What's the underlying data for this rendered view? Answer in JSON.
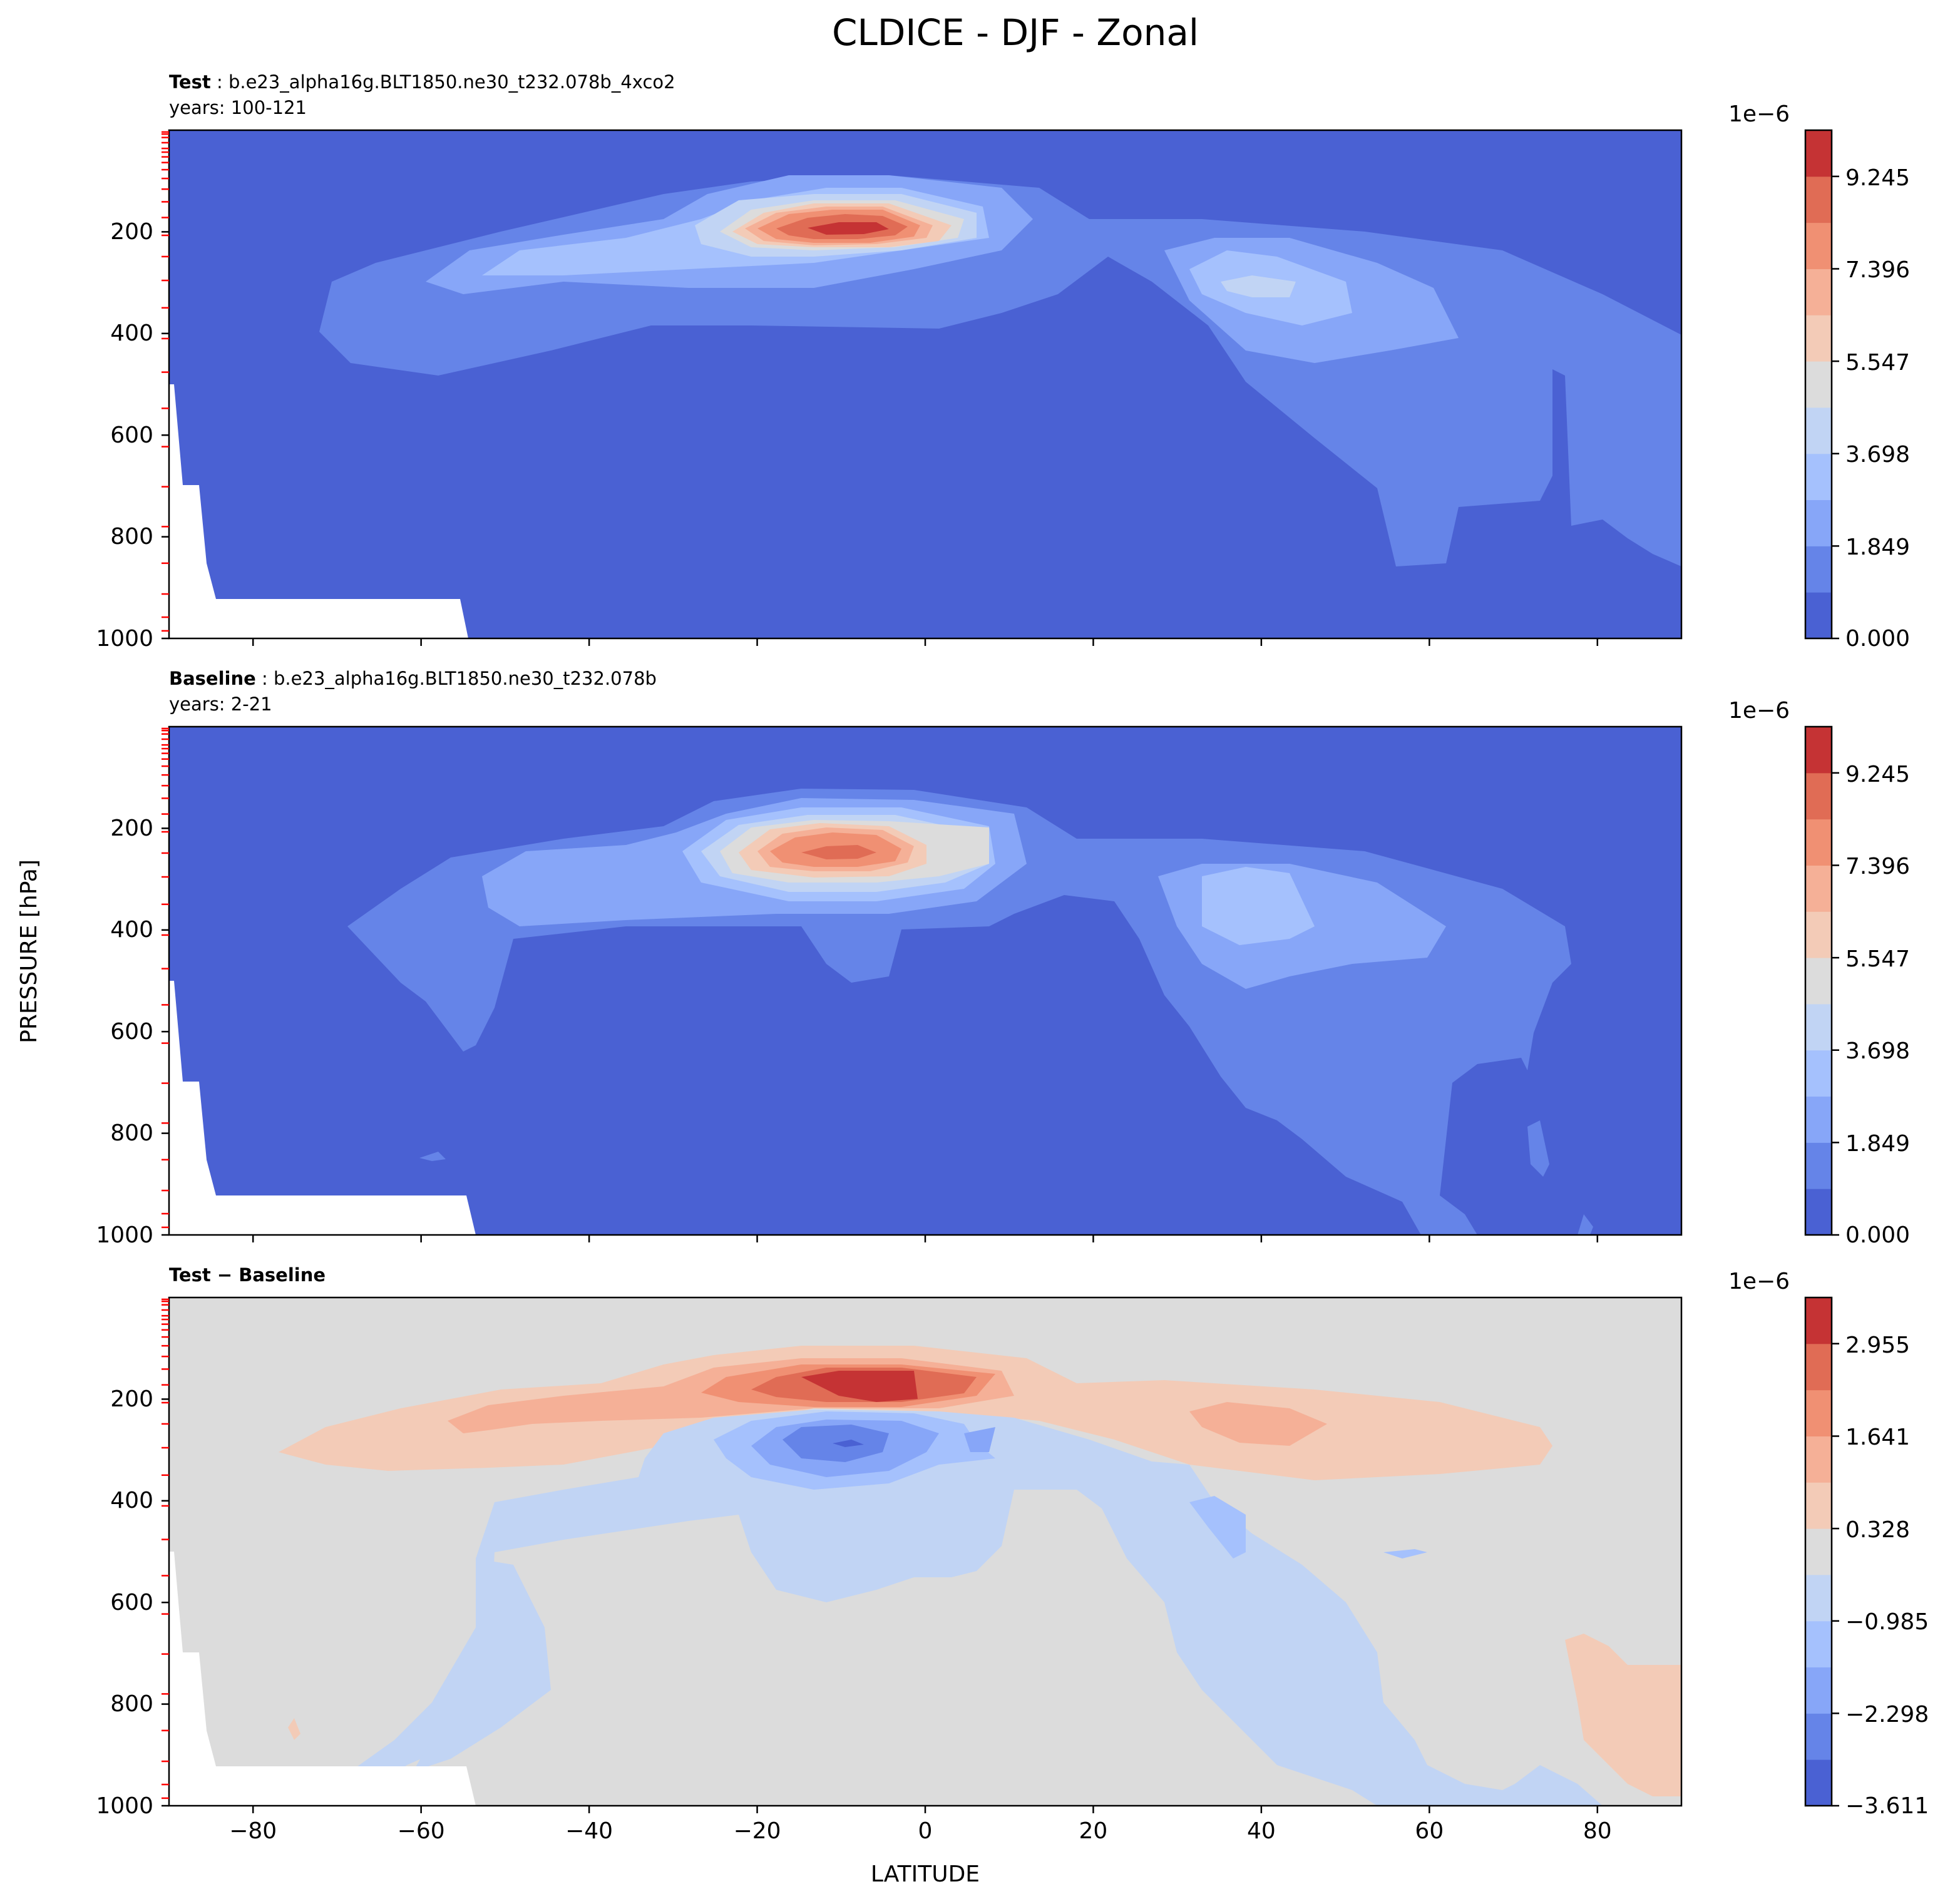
{
  "figure": {
    "title": "CLDICE - DJF - Zonal",
    "shared_ylabel": "PRESSURE [hPa]",
    "shared_xlabel": "LATITUDE"
  },
  "colors": {
    "neg_strong": "#4a61d3",
    "neg_4": "#6584e8",
    "neg_3": "#87a6f8",
    "neg_2": "#a5c1fd",
    "neg_1": "#c1d4f4",
    "neutral": "#dcdcdc",
    "pos_1": "#f3cbb7",
    "pos_2": "#f5b097",
    "pos_3": "#f09073",
    "pos_4": "#e06c55",
    "pos_strong": "#c53334",
    "tick_red": "#ff0000"
  },
  "chart_data": [
    {
      "type": "contourf",
      "panel_label_bold": "Test",
      "panel_label_rest": " : b.e23_alpha16g.BLT1850.ne30_t232.078b_4xco2",
      "years": "years: 100-121",
      "xlim": [
        -90,
        90
      ],
      "ylim": [
        1000,
        0
      ],
      "x_ticks": [
        -80,
        -60,
        -40,
        -20,
        0,
        20,
        40,
        60,
        80
      ],
      "y_ticks": [
        "200",
        "400",
        "600",
        "800",
        "1000"
      ],
      "colorbar": {
        "exponent": "1e−6",
        "tick_labels": [
          "9.245",
          "7.396",
          "5.547",
          "3.698",
          "1.849",
          "0.000"
        ],
        "levels": [
          0,
          0.925,
          1.849,
          2.774,
          3.698,
          4.623,
          5.547,
          6.472,
          7.396,
          8.321,
          9.245,
          10.17
        ]
      },
      "features": [
        {
          "name": "tropical upper maximum",
          "lat": -7,
          "pressure_hpa": 200,
          "max": 9.5
        },
        {
          "name": "northern mid-latitude maximum",
          "lat": 40,
          "pressure_hpa": 300,
          "max": 4.2
        }
      ]
    },
    {
      "type": "contourf",
      "panel_label_bold": "Baseline",
      "panel_label_rest": " : b.e23_alpha16g.BLT1850.ne30_t232.078b",
      "years": "years: 2-21",
      "xlim": [
        -90,
        90
      ],
      "ylim": [
        1000,
        0
      ],
      "x_ticks": [
        -80,
        -60,
        -40,
        -20,
        0,
        20,
        40,
        60,
        80
      ],
      "y_ticks": [
        "200",
        "400",
        "600",
        "800",
        "1000"
      ],
      "colorbar": {
        "exponent": "1e−6",
        "tick_labels": [
          "9.245",
          "7.396",
          "5.547",
          "3.698",
          "1.849",
          "0.000"
        ],
        "levels": [
          0,
          0.925,
          1.849,
          2.774,
          3.698,
          4.623,
          5.547,
          6.472,
          7.396,
          8.321,
          9.245,
          10.17
        ]
      },
      "features": [
        {
          "name": "tropical upper maximum",
          "lat": -8,
          "pressure_hpa": 240,
          "max": 8.5
        },
        {
          "name": "northern mid-latitude maximum",
          "lat": 38,
          "pressure_hpa": 380,
          "max": 3.5
        }
      ]
    },
    {
      "type": "contourf",
      "panel_label_bold": "Test − Baseline",
      "panel_label_rest": "",
      "years": "",
      "xlim": [
        -90,
        90
      ],
      "ylim": [
        1000,
        0
      ],
      "x_ticks": [
        -80,
        -60,
        -40,
        -20,
        0,
        20,
        40,
        60,
        80
      ],
      "y_ticks": [
        "200",
        "400",
        "600",
        "800",
        "1000"
      ],
      "colorbar": {
        "exponent": "1e−6",
        "tick_labels": [
          "2.955",
          "1.641",
          "0.328",
          "−0.985",
          "−2.298",
          "−3.611"
        ],
        "levels": [
          -3.611,
          -2.954,
          -2.298,
          -1.641,
          -0.985,
          -0.328,
          0.328,
          0.985,
          1.641,
          2.298,
          2.955,
          3.611
        ]
      },
      "features": [
        {
          "name": "upper tropical increase",
          "lat": -5,
          "pressure_hpa": 160,
          "max": 3.2
        },
        {
          "name": "tropical decrease below",
          "lat": -10,
          "pressure_hpa": 300,
          "min": -3.0
        }
      ]
    }
  ]
}
